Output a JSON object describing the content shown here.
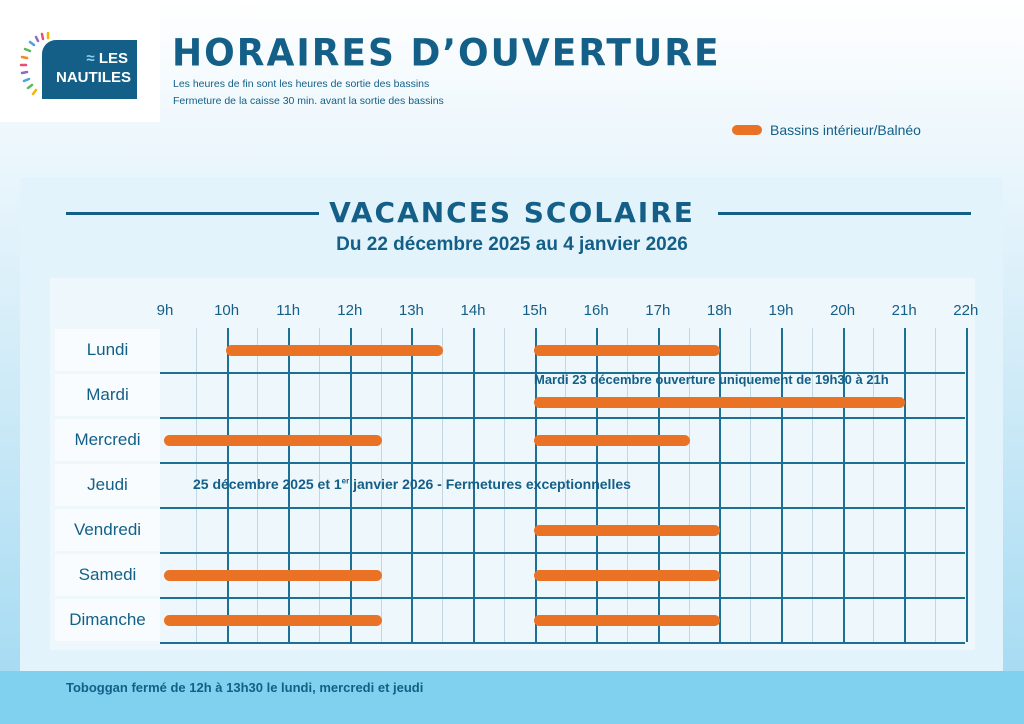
{
  "logo": {
    "line1": "LES",
    "line2": "NAUTILES"
  },
  "header": {
    "title": "HORAIRES D’OUVERTURE",
    "subtitle1": "Les heures de fin sont les heures de sortie des bassins",
    "subtitle2": "Fermeture de la caisse 30 min. avant la sortie des bassins"
  },
  "legend": {
    "label": "Bassins intérieur/Balnéo",
    "color": "#ea7224"
  },
  "section": {
    "title": "VACANCES SCOLAIRE",
    "dates": "Du 22 décembre 2025 au 4 janvier 2026"
  },
  "hours": [
    "9h",
    "10h",
    "11h",
    "12h",
    "13h",
    "14h",
    "15h",
    "16h",
    "17h",
    "18h",
    "19h",
    "20h",
    "21h",
    "22h"
  ],
  "days": [
    {
      "name": "Lundi",
      "slots": [
        [
          10,
          13.5
        ],
        [
          15,
          18
        ]
      ]
    },
    {
      "name": "Mardi",
      "slots": [
        [
          15,
          21
        ]
      ]
    },
    {
      "name": "Mercredi",
      "slots": [
        [
          9,
          12.5
        ],
        [
          15,
          17.5
        ]
      ]
    },
    {
      "name": "Jeudi",
      "slots": []
    },
    {
      "name": "Vendredi",
      "slots": [
        [
          15,
          18
        ]
      ]
    },
    {
      "name": "Samedi",
      "slots": [
        [
          9,
          12.5
        ],
        [
          15,
          18
        ]
      ]
    },
    {
      "name": "Dimanche",
      "slots": [
        [
          9,
          12.5
        ],
        [
          15,
          18
        ]
      ]
    }
  ],
  "notes": {
    "mardi": "Mardi 23 décembre ouverture uniquement de 19h30 à 21h",
    "jeudi_pre": "25 décembre 2025 et 1",
    "jeudi_sup": "er",
    "jeudi_post": " janvier 2026 - Fermetures exceptionnelles"
  },
  "footer": "Toboggan fermé de 12h à 13h30 le lundi, mercredi et jeudi"
}
